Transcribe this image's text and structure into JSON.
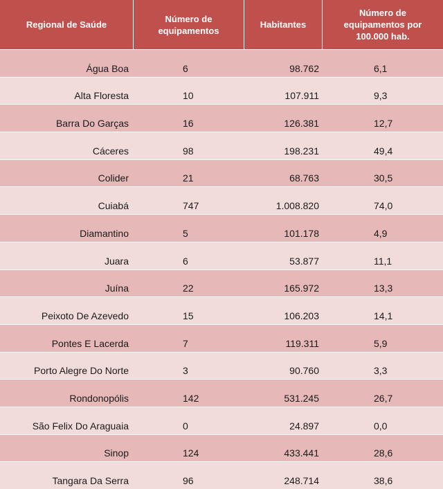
{
  "header": {
    "col_region": "Regional de Saúde",
    "col_equip_line1": "Número de",
    "col_equip_line2": "equipamentos",
    "col_hab": "Habitantes",
    "col_rate_line1": "Número de",
    "col_rate_line2": "equipamentos por",
    "col_rate_line3": "100.000 hab."
  },
  "rows": [
    {
      "region": "Água Boa",
      "equip": "6",
      "hab": "98.762",
      "rate": "6,1"
    },
    {
      "region": "Alta Floresta",
      "equip": "10",
      "hab": "107.911",
      "rate": "9,3"
    },
    {
      "region": "Barra Do Garças",
      "equip": "16",
      "hab": "126.381",
      "rate": "12,7"
    },
    {
      "region": "Cáceres",
      "equip": "98",
      "hab": "198.231",
      "rate": "49,4"
    },
    {
      "region": "Colider",
      "equip": "21",
      "hab": "68.763",
      "rate": "30,5"
    },
    {
      "region": "Cuiabá",
      "equip": "747",
      "hab": "1.008.820",
      "rate": "74,0"
    },
    {
      "region": "Diamantino",
      "equip": "5",
      "hab": "101.178",
      "rate": "4,9"
    },
    {
      "region": "Juara",
      "equip": "6",
      "hab": "53.877",
      "rate": "11,1"
    },
    {
      "region": "Juína",
      "equip": "22",
      "hab": "165.972",
      "rate": "13,3"
    },
    {
      "region": "Peixoto De Azevedo",
      "equip": "15",
      "hab": "106.203",
      "rate": "14,1"
    },
    {
      "region": "Pontes E Lacerda",
      "equip": "7",
      "hab": "119.311",
      "rate": "5,9"
    },
    {
      "region": "Porto Alegre Do Norte",
      "equip": "3",
      "hab": "90.760",
      "rate": "3,3"
    },
    {
      "region": "Rondonopólis",
      "equip": "142",
      "hab": "531.245",
      "rate": "26,7"
    },
    {
      "region": "São Felix Do Araguaia",
      "equip": "0",
      "hab": "24.897",
      "rate": "0,0"
    },
    {
      "region": "Sinop",
      "equip": "124",
      "hab": "433.441",
      "rate": "28,6"
    },
    {
      "region": "Tangara Da Serra",
      "equip": "96",
      "hab": "248.714",
      "rate": "38,6"
    }
  ],
  "colors": {
    "header_bg": "#c0504d",
    "row_odd": "#e6b8b7",
    "row_even": "#f2dcdb"
  }
}
